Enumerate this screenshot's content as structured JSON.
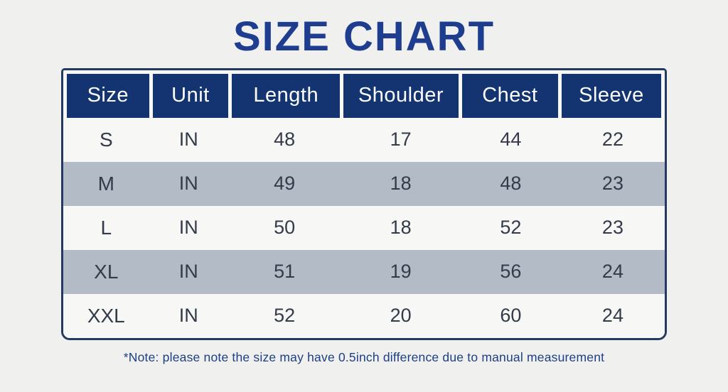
{
  "title": "SIZE CHART",
  "note": "*Note: please note the size may have 0.5inch difference due to manual measurement",
  "colors": {
    "background": "#f0f0ee",
    "title_text": "#1e3d8f",
    "header_background": "#143471",
    "header_text": "#fdfdfd",
    "row_light": "#f7f8f5",
    "row_shaded": "#b3bbc7",
    "cell_text": "#333b4b",
    "table_border": "#253a63",
    "note_text": "#1d3f85"
  },
  "chart_data": {
    "type": "table",
    "title": "SIZE CHART",
    "columns": [
      "Size",
      "Unit",
      "Length",
      "Shoulder",
      "Chest",
      "Sleeve"
    ],
    "rows": [
      [
        "S",
        "IN",
        "48",
        "17",
        "44",
        "22"
      ],
      [
        "M",
        "IN",
        "49",
        "18",
        "48",
        "23"
      ],
      [
        "L",
        "IN",
        "50",
        "18",
        "52",
        "23"
      ],
      [
        "XL",
        "IN",
        "51",
        "19",
        "56",
        "24"
      ],
      [
        "XXL",
        "IN",
        "52",
        "20",
        "60",
        "24"
      ]
    ],
    "shaded_row_indices": [
      1,
      3
    ],
    "note": "*Note: please note the size may have 0.5inch difference due to manual measurement"
  }
}
